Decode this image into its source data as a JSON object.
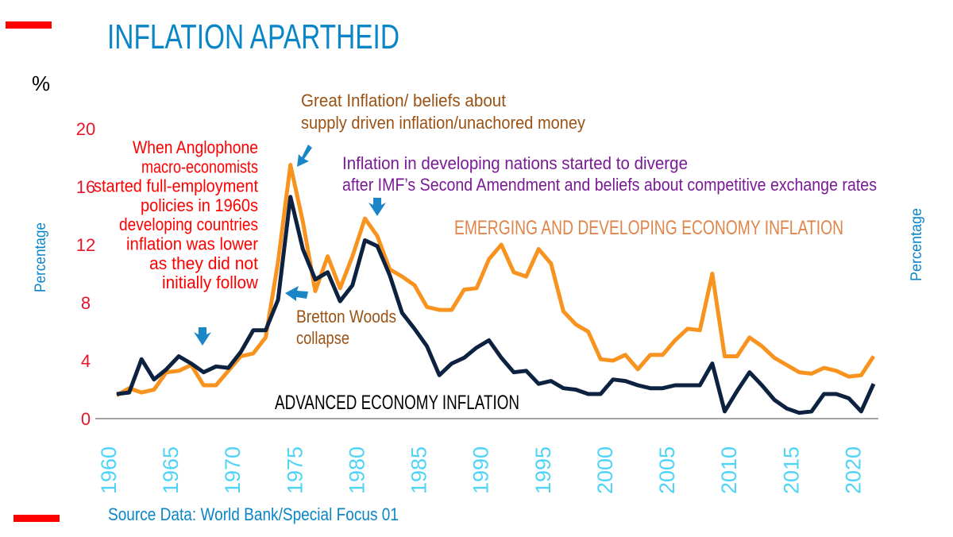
{
  "title": "INFLATION APARTHEID",
  "unit_symbol": "%",
  "source": "Source Data: World Bank/Special Focus 01",
  "colors": {
    "title": "#0a86c8",
    "accent_bar": "#ff0000",
    "y_ticks": "#e8152a",
    "x_ticks": "#4fd3f7",
    "advanced": "#0d2240",
    "emerging": "#f7931e",
    "emerging_label": "#e0854a",
    "arrow": "#1a86c8",
    "brown_note": "#9a5214",
    "red_note": "#ff0000",
    "purple_note": "#7a1a96"
  },
  "annotations": {
    "anglophone": [
      "When Anglophone",
      "macro-economists",
      "started full-employment",
      "policies in 1960s",
      "developing countries",
      "inflation was lower",
      "as they did not",
      "initially follow"
    ],
    "great_inflation": [
      "Great Inflation/ beliefs about",
      "supply driven inflation/unachored money"
    ],
    "imf": [
      "Inflation in developing nations started to diverge",
      "after IMF’s Second Amendment and beliefs about competitive exchange rates"
    ],
    "bretton_woods": [
      "Bretton Woods",
      "collapse"
    ]
  },
  "chart_data": {
    "type": "line",
    "title": "INFLATION APARTHEID",
    "xlabel": "",
    "ylabel": "Percentage",
    "ylabel_right": "Percentage",
    "xlim": [
      1960,
      2021
    ],
    "ylim": [
      0,
      20
    ],
    "y_ticks": [
      "0",
      "4",
      "8",
      "12",
      "16",
      "20"
    ],
    "x_ticks": [
      "1960",
      "1965",
      "1970",
      "1975",
      "1980",
      "1985",
      "1990",
      "1995",
      "2000",
      "2005",
      "2010",
      "2015",
      "2020"
    ],
    "grid": false,
    "x": [
      1960,
      1961,
      1962,
      1963,
      1964,
      1965,
      1966,
      1967,
      1968,
      1969,
      1970,
      1971,
      1972,
      1973,
      1974,
      1975,
      1976,
      1977,
      1978,
      1979,
      1980,
      1981,
      1982,
      1983,
      1984,
      1985,
      1986,
      1987,
      1988,
      1989,
      1990,
      1991,
      1992,
      1993,
      1994,
      1995,
      1996,
      1997,
      1998,
      1999,
      2000,
      2001,
      2002,
      2003,
      2004,
      2005,
      2006,
      2007,
      2008,
      2009,
      2010,
      2011,
      2012,
      2013,
      2014,
      2015,
      2016,
      2017,
      2018,
      2019,
      2020,
      2021
    ],
    "series": [
      {
        "name": "EMERGING AND DEVELOPING ECONOMY INFLATION",
        "color": "#f7931e",
        "values": [
          1.6,
          2.1,
          1.8,
          2.0,
          3.2,
          3.3,
          3.7,
          2.3,
          2.3,
          3.3,
          4.3,
          4.5,
          5.6,
          10.8,
          17.5,
          13.6,
          8.8,
          11.2,
          9.0,
          11.2,
          13.8,
          12.6,
          10.3,
          9.8,
          9.2,
          7.7,
          7.5,
          7.5,
          8.9,
          9.0,
          11.0,
          12.0,
          10.1,
          9.8,
          11.7,
          10.7,
          7.4,
          6.5,
          6.0,
          4.1,
          4.0,
          4.4,
          3.4,
          4.4,
          4.4,
          5.4,
          6.2,
          6.1,
          10.0,
          4.3,
          4.3,
          5.6,
          5.0,
          4.2,
          3.7,
          3.2,
          3.1,
          3.5,
          3.3,
          2.9,
          3.0,
          4.3
        ]
      },
      {
        "name": "ADVANCED ECONOMY INFLATION",
        "color": "#0d2240",
        "values": [
          1.7,
          1.8,
          4.1,
          2.7,
          3.4,
          4.3,
          3.8,
          3.2,
          3.6,
          3.5,
          4.6,
          6.1,
          6.1,
          8.2,
          15.3,
          11.7,
          9.6,
          10.1,
          8.1,
          9.2,
          12.3,
          11.9,
          9.9,
          7.3,
          6.2,
          5.0,
          3.0,
          3.8,
          4.2,
          4.9,
          5.4,
          4.2,
          3.2,
          3.3,
          2.4,
          2.6,
          2.1,
          2.0,
          1.7,
          1.7,
          2.7,
          2.6,
          2.3,
          2.1,
          2.1,
          2.3,
          2.3,
          2.3,
          3.8,
          0.5,
          1.9,
          3.2,
          2.3,
          1.3,
          0.7,
          0.4,
          0.5,
          1.7,
          1.7,
          1.4,
          0.5,
          2.4
        ]
      }
    ]
  }
}
